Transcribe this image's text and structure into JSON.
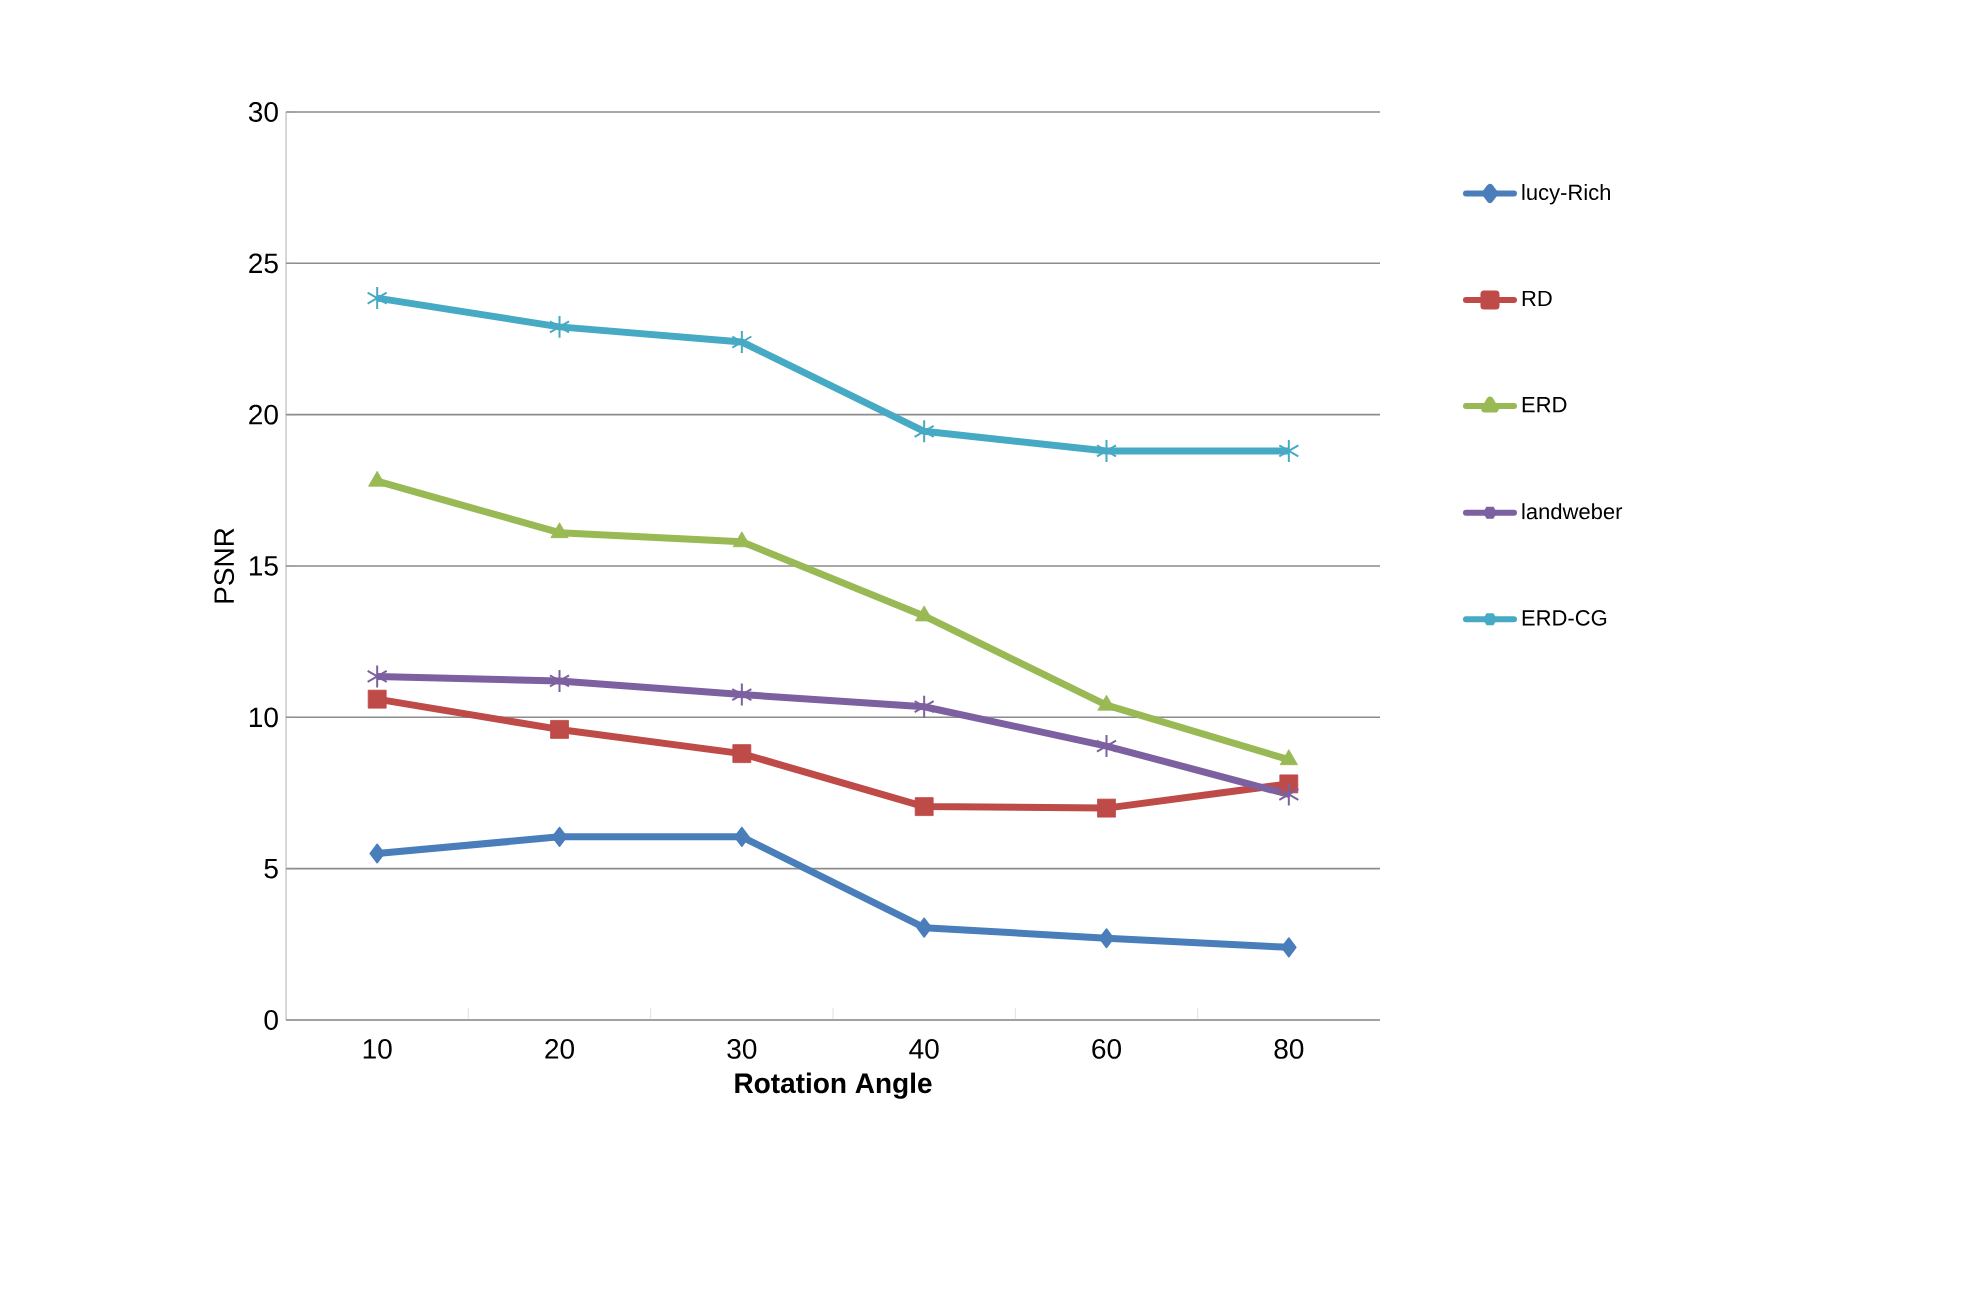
{
  "chart_data": {
    "type": "line",
    "xlabel": "Rotation Angle",
    "ylabel": "PSNR",
    "categories": [
      "10",
      "20",
      "30",
      "40",
      "60",
      "80"
    ],
    "ylim": [
      0,
      30
    ],
    "yticks": [
      0,
      5,
      10,
      15,
      20,
      25,
      30
    ],
    "grid": "y",
    "legend": "right",
    "series": [
      {
        "name": "lucy-Rich",
        "color": "#4a7ebb",
        "marker": "diamond",
        "values": [
          5.5,
          6.05,
          6.05,
          3.05,
          2.7,
          2.4
        ]
      },
      {
        "name": "RD",
        "color": "#be4b48",
        "marker": "square",
        "values": [
          10.6,
          9.6,
          8.8,
          7.05,
          7.0,
          7.8
        ]
      },
      {
        "name": "ERD",
        "color": "#98b954",
        "marker": "triangle",
        "values": [
          17.8,
          16.1,
          15.8,
          13.35,
          10.4,
          8.6
        ]
      },
      {
        "name": "landweber",
        "color": "#7d60a0",
        "marker": "cross",
        "values": [
          11.35,
          11.2,
          10.75,
          10.35,
          9.05,
          7.45
        ]
      },
      {
        "name": "ERD-CG",
        "color": "#46aac5",
        "marker": "cross",
        "values": [
          23.85,
          22.9,
          22.4,
          19.45,
          18.8,
          18.8
        ]
      }
    ]
  }
}
